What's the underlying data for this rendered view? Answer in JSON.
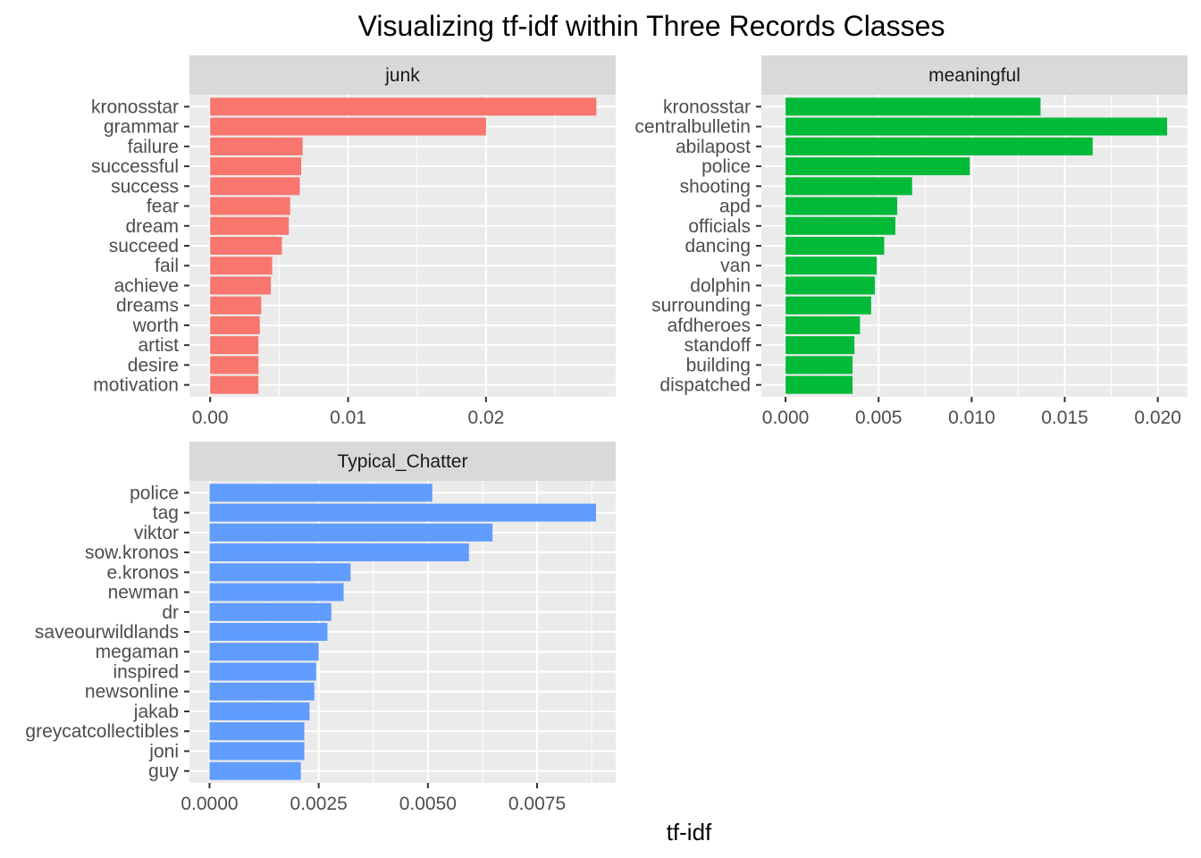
{
  "title": "Visualizing tf-idf within Three Records Classes",
  "xlabel": "tf-idf",
  "colors": {
    "junk": "#F8766D",
    "meaningful": "#00BA38",
    "Typical_Chatter": "#619CFF",
    "panel_bg": "#EBEBEB",
    "strip_bg": "#D9D9D9",
    "grid": "#FFFFFF"
  },
  "chart_data": [
    {
      "type": "bar",
      "orientation": "horizontal",
      "facet": "junk",
      "color": "#F8766D",
      "categories": [
        "kronosstar",
        "grammar",
        "failure",
        "successful",
        "success",
        "fear",
        "dream",
        "succeed",
        "fail",
        "achieve",
        "dreams",
        "worth",
        "artist",
        "desire",
        "motivation"
      ],
      "values": [
        0.028,
        0.02,
        0.0067,
        0.0066,
        0.0065,
        0.0058,
        0.0057,
        0.0052,
        0.0045,
        0.0044,
        0.0037,
        0.0036,
        0.0035,
        0.0035,
        0.0035
      ],
      "xlim": [
        -0.0015,
        0.0294
      ],
      "xticks": [
        0,
        0.01,
        0.02
      ],
      "xtick_labels": [
        "0.00",
        "0.01",
        "0.02"
      ]
    },
    {
      "type": "bar",
      "orientation": "horizontal",
      "facet": "meaningful",
      "color": "#00BA38",
      "categories": [
        "kronosstar",
        "centralbulletin",
        "abilapost",
        "police",
        "shooting",
        "apd",
        "officials",
        "dancing",
        "van",
        "dolphin",
        "surrounding",
        "afdheroes",
        "standoff",
        "building",
        "dispatched"
      ],
      "values": [
        0.0137,
        0.0205,
        0.0165,
        0.0099,
        0.0068,
        0.006,
        0.0059,
        0.0053,
        0.0049,
        0.0048,
        0.0046,
        0.004,
        0.0037,
        0.0036,
        0.0036
      ],
      "xlim": [
        -0.0013,
        0.0216
      ],
      "xticks": [
        0,
        0.005,
        0.01,
        0.015,
        0.02
      ],
      "xtick_labels": [
        "0.000",
        "0.005",
        "0.010",
        "0.015",
        "0.020"
      ]
    },
    {
      "type": "bar",
      "orientation": "horizontal",
      "facet": "Typical_Chatter",
      "color": "#619CFF",
      "categories": [
        "police",
        "tag",
        "viktor",
        "sow.kronos",
        "e.kronos",
        "newman",
        "dr",
        "saveourwildlands",
        "megaman",
        "inspired",
        "newsonline",
        "jakab",
        "greycatcollectibles",
        "joni",
        "guy"
      ],
      "values": [
        0.0051,
        0.00885,
        0.00648,
        0.00594,
        0.00323,
        0.00307,
        0.00279,
        0.0027,
        0.0025,
        0.00244,
        0.0024,
        0.00229,
        0.00217,
        0.00217,
        0.00209
      ],
      "xlim": [
        -0.00046,
        0.0093
      ],
      "xticks": [
        0,
        0.0025,
        0.005,
        0.0075
      ],
      "xtick_labels": [
        "0.0000",
        "0.0025",
        "0.0050",
        "0.0075"
      ]
    }
  ]
}
